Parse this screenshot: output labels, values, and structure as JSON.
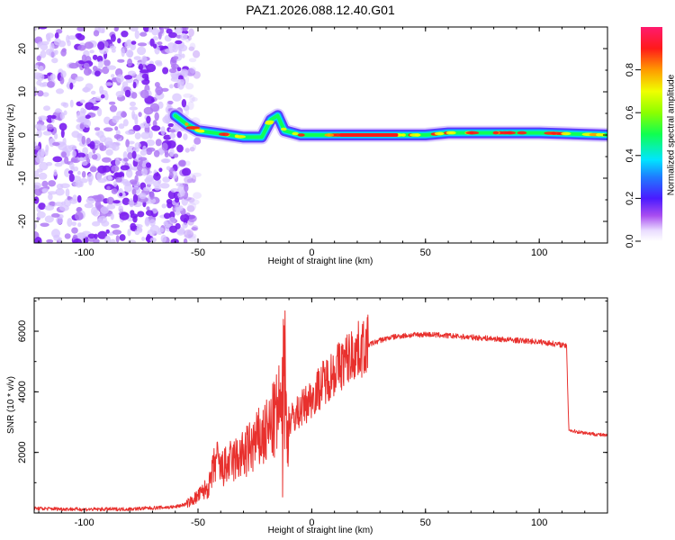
{
  "figure": {
    "title": "PAZ1.2026.088.12.40.G01"
  },
  "colors": {
    "line": "#e8312e",
    "axis": "#000000",
    "background": "#ffffff"
  },
  "chart_data": [
    {
      "type": "heatmap",
      "xlabel": "Height of straight line (km)",
      "ylabel": "Frequency (Hz)",
      "xlim": [
        -122,
        130
      ],
      "ylim": [
        -25,
        25
      ],
      "xticks": [
        -100,
        -50,
        0,
        50,
        100
      ],
      "xtick_labels": [
        "-100",
        "-50",
        "0",
        "50",
        "100"
      ],
      "yticks": [
        -20,
        -10,
        0,
        10,
        20
      ],
      "ytick_labels": [
        "-20",
        "-10",
        "0",
        "10",
        "20"
      ],
      "noise_region_x": [
        -122,
        -55
      ],
      "ridge": [
        {
          "x": -60,
          "y": 4.5
        },
        {
          "x": -55,
          "y": 2.5
        },
        {
          "x": -50,
          "y": 1.0
        },
        {
          "x": -40,
          "y": 0.3
        },
        {
          "x": -30,
          "y": -0.5
        },
        {
          "x": -22,
          "y": -0.5
        },
        {
          "x": -18,
          "y": 3.5
        },
        {
          "x": -15,
          "y": 4.5
        },
        {
          "x": -12,
          "y": 1.0
        },
        {
          "x": -5,
          "y": 0
        },
        {
          "x": 20,
          "y": 0
        },
        {
          "x": 50,
          "y": 0
        },
        {
          "x": 60,
          "y": 0.5
        },
        {
          "x": 100,
          "y": 0.5
        },
        {
          "x": 130,
          "y": 0
        }
      ],
      "colorbar": {
        "label": "Normalized spectral amplitude",
        "range": [
          0,
          1
        ],
        "ticks": [
          0.0,
          0.2,
          0.4,
          0.6,
          0.8
        ],
        "tick_labels": [
          "0.0",
          "0.2",
          "0.4",
          "0.6",
          "0.8"
        ]
      }
    },
    {
      "type": "line",
      "xlabel": "Height of straight line (km)",
      "ylabel": "SNR (10 * v/v)",
      "xlim": [
        -122,
        130
      ],
      "ylim": [
        0,
        7100
      ],
      "xticks": [
        -100,
        -50,
        0,
        50,
        100
      ],
      "xtick_labels": [
        "-100",
        "-50",
        "0",
        "50",
        "100"
      ],
      "yticks": [
        2000,
        4000,
        6000
      ],
      "ytick_labels": [
        "2000",
        "4000",
        "6000"
      ],
      "x": [
        -122,
        -100,
        -80,
        -60,
        -55,
        -50,
        -45,
        -42,
        -40,
        -35,
        -30,
        -25,
        -20,
        -16,
        -14,
        -13,
        -12,
        -11,
        -10,
        -5,
        0,
        5,
        10,
        15,
        20,
        25,
        30,
        35,
        40,
        50,
        60,
        70,
        80,
        90,
        100,
        105,
        110,
        112,
        113,
        115,
        120,
        125,
        130
      ],
      "y": [
        150,
        120,
        130,
        200,
        300,
        550,
        900,
        1800,
        1400,
        1700,
        1900,
        2300,
        2600,
        3100,
        3600,
        2000,
        6200,
        2400,
        3000,
        3400,
        3800,
        4300,
        4700,
        5050,
        5350,
        5550,
        5700,
        5800,
        5850,
        5900,
        5850,
        5800,
        5750,
        5700,
        5650,
        5600,
        5550,
        5500,
        2750,
        2700,
        2650,
        2600,
        2550
      ]
    }
  ]
}
